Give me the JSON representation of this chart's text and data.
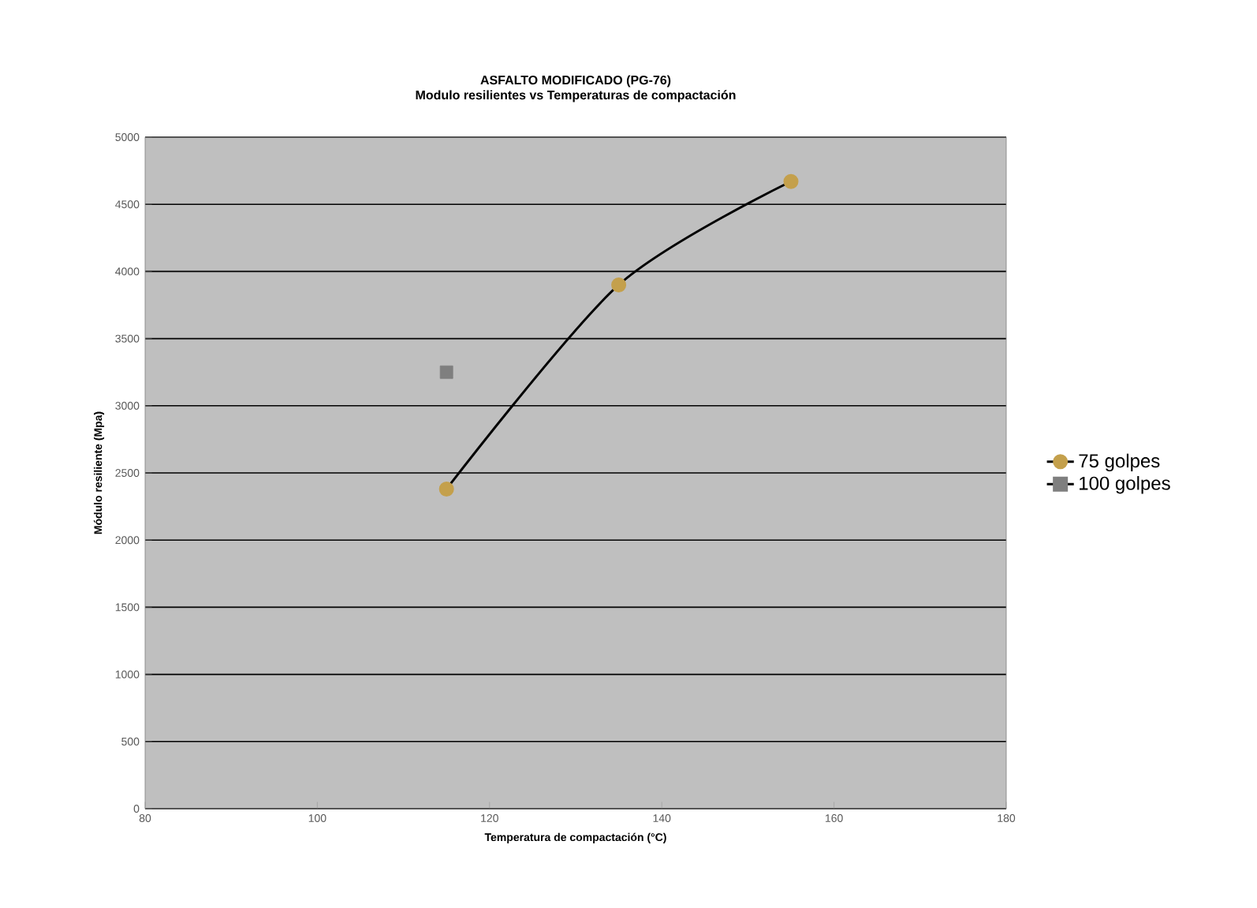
{
  "chart_data": {
    "type": "line",
    "title": "ASFALTO MODIFICADO (PG-76)",
    "subtitle": "Modulo resilientes vs Temperaturas de compactación",
    "xlabel": "Temperatura de compactación (°C)",
    "ylabel": "Módulo resiliente (Mpa)",
    "xlim": [
      80,
      180
    ],
    "xticks": [
      80,
      100,
      120,
      140,
      160,
      180
    ],
    "ylim": [
      0,
      5000
    ],
    "yticks": [
      0,
      500,
      1000,
      1500,
      2000,
      2500,
      3000,
      3500,
      4000,
      4500,
      5000
    ],
    "grid": "y",
    "legend": "right",
    "series": [
      {
        "name": "75 golpes",
        "color": "#c4a04c",
        "x": [
          115,
          135,
          155
        ],
        "values": [
          2380,
          3900,
          4670
        ],
        "marker": "circle",
        "line_style": "solid"
      },
      {
        "name": "100 golpes",
        "color": "#7f7f7f",
        "type": "scatter",
        "x": [
          115
        ],
        "values": [
          3250
        ],
        "marker": "square"
      }
    ]
  }
}
